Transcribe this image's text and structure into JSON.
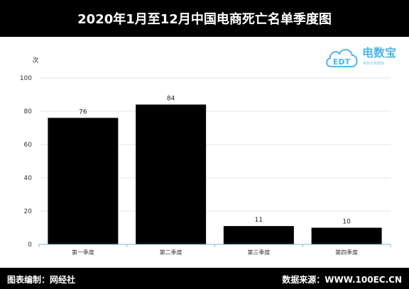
{
  "title": "2020年1月至12月中国电商死亡名单季度图",
  "footer": {
    "left": "图表编制：网经社",
    "right": "数据来源：WWW.100EC.CN"
  },
  "logo": {
    "text": "电数宝",
    "subtext": "电商大数据库",
    "cloud_text": "EDT",
    "color": "#4fb6e6"
  },
  "chart_data": {
    "type": "bar",
    "categories": [
      "第一季度",
      "第二季度",
      "第三季度",
      "第四季度"
    ],
    "values": [
      76,
      84,
      11,
      10
    ],
    "ylabel": "次",
    "ylim": [
      0,
      100
    ],
    "yticks": [
      0,
      20,
      40,
      60,
      80,
      100
    ],
    "grid": true,
    "bar_color": "#000000"
  }
}
